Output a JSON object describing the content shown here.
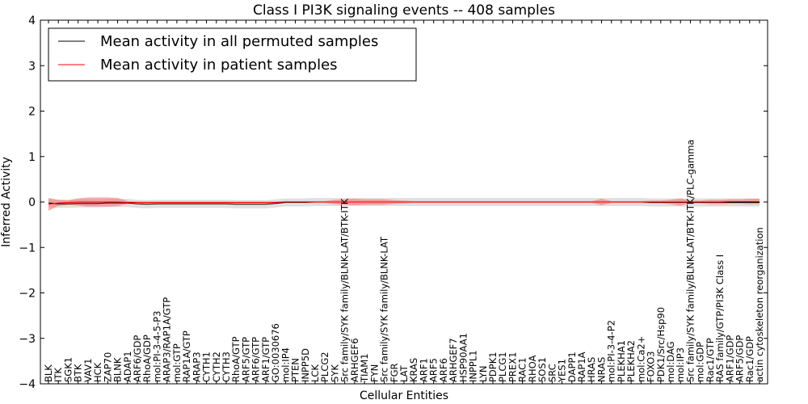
{
  "chart_data": {
    "type": "line",
    "title": "Class I PI3K signaling events -- 408 samples",
    "xlabel": "Cellular Entities",
    "ylabel": "Inferred Activity",
    "ylim": [
      -4,
      4
    ],
    "yticks": [
      4,
      3,
      2,
      1,
      0,
      -1,
      -2,
      -3,
      -4
    ],
    "ytick_labels": [
      "4",
      "3",
      "2",
      "1",
      "0",
      "−1",
      "−2",
      "−3",
      "−4"
    ],
    "grid": false,
    "legend_position": "top-left",
    "categories": [
      "BLK",
      "ITK",
      "SGK1",
      "BTK",
      "VAV1",
      "HCK",
      "ZAP70",
      "BLNK",
      "ADAP1",
      "ARF6/GDP",
      "RhoA/GDP",
      "mol:PI-3-4-5-P3",
      "ARAP3/RAP1A/GTP",
      "mol:GTP",
      "RAP1A/GTP",
      "ARAP3",
      "CYTH1",
      "CYTH2",
      "CYTH3",
      "RhoA/GTP",
      "ARF5/GTP",
      "ARF6/GTP",
      "ARF1/GTP",
      "GO:0030676",
      "mol:IP4",
      "PTEN",
      "INPP5D",
      "LCK",
      "PLCG2",
      "SYK",
      "Src family/SYK family/BLNK-LAT/BTK-ITK",
      "ARHGEF6",
      "TIAM1",
      "FYN",
      "Src family/SYK family/BLNK-LAT",
      "FGR",
      "LAT",
      "KRAS",
      "ARF1",
      "ARF5",
      "ARF6",
      "ARHGEF7",
      "HSP90AA1",
      "INPPL1",
      "LYN",
      "PDPK1",
      "PLCG1",
      "PREX1",
      "RAC1",
      "RHOA",
      "SOS1",
      "SRC",
      "YES1",
      "DAPP1",
      "RAP1A",
      "HRAS",
      "NRAS",
      "mol:PI-3-4-P2",
      "PLEKHA1",
      "PLEKHA2",
      "mol:Ca2+",
      "FOXO3",
      "PDK1/Src/Hsp90",
      "mol:DAG",
      "mol:IP3",
      "Src family/SYK family/BLNK-LAT/BTK-ITK/PLC-gamma",
      "mol:GDP",
      "Rac1/GTP",
      "RAS family/GTP/PI3K Class I",
      "ARF1/GDP",
      "ARF5/GDP",
      "Rac1/GDP",
      "actin cytoskeleton reorganization"
    ],
    "series": [
      {
        "name": "Mean activity in all permuted samples",
        "color": "#000000",
        "values": [
          -0.02,
          -0.04,
          -0.04,
          -0.03,
          -0.03,
          -0.03,
          -0.02,
          -0.02,
          -0.02,
          -0.04,
          -0.05,
          -0.04,
          -0.04,
          -0.04,
          -0.04,
          -0.04,
          -0.04,
          -0.04,
          -0.04,
          -0.05,
          -0.05,
          -0.05,
          -0.05,
          -0.03,
          -0.01,
          -0.01,
          -0.01,
          0.0,
          0.0,
          0.0,
          0.0,
          0.0,
          0.0,
          0.0,
          0.0,
          0.0,
          0.0,
          0.0,
          0.0,
          0.0,
          0.0,
          0.0,
          0.0,
          0.0,
          0.0,
          0.0,
          0.0,
          0.0,
          0.0,
          0.0,
          0.0,
          0.0,
          0.0,
          0.0,
          0.0,
          0.0,
          0.0,
          0.0,
          0.0,
          0.0,
          0.0,
          -0.01,
          -0.01,
          -0.01,
          -0.01,
          -0.01,
          -0.01,
          -0.01,
          -0.01,
          -0.01,
          -0.01,
          -0.01,
          -0.01
        ],
        "band": [
          0.09,
          0.09,
          0.09,
          0.09,
          0.09,
          0.09,
          0.09,
          0.09,
          0.09,
          0.09,
          0.09,
          0.09,
          0.09,
          0.09,
          0.09,
          0.09,
          0.09,
          0.09,
          0.09,
          0.09,
          0.09,
          0.09,
          0.09,
          0.09,
          0.09,
          0.09,
          0.09,
          0.09,
          0.09,
          0.09,
          0.09,
          0.09,
          0.09,
          0.09,
          0.09,
          0.09,
          0.09,
          0.09,
          0.09,
          0.09,
          0.09,
          0.09,
          0.09,
          0.09,
          0.09,
          0.09,
          0.09,
          0.09,
          0.09,
          0.09,
          0.09,
          0.09,
          0.09,
          0.09,
          0.09,
          0.09,
          0.09,
          0.09,
          0.09,
          0.09,
          0.09,
          0.09,
          0.09,
          0.09,
          0.09,
          0.09,
          0.09,
          0.09,
          0.09,
          0.09,
          0.09,
          0.09,
          0.09
        ]
      },
      {
        "name": "Mean activity in patient samples",
        "color": "#ff0000",
        "values": [
          -0.05,
          -0.02,
          -0.01,
          0.0,
          0.0,
          0.0,
          0.0,
          0.0,
          -0.01,
          -0.01,
          -0.01,
          -0.01,
          -0.01,
          -0.01,
          -0.01,
          -0.01,
          -0.01,
          -0.01,
          -0.01,
          -0.01,
          -0.01,
          -0.01,
          -0.01,
          -0.01,
          0.0,
          0.0,
          0.0,
          0.0,
          0.0,
          0.0,
          0.0,
          0.0,
          0.0,
          0.0,
          0.0,
          0.0,
          0.0,
          0.0,
          0.0,
          0.0,
          0.0,
          0.0,
          0.0,
          0.0,
          0.0,
          0.0,
          0.0,
          0.0,
          0.0,
          0.0,
          0.0,
          0.0,
          0.0,
          0.0,
          0.0,
          0.0,
          0.0,
          0.0,
          0.0,
          0.0,
          0.0,
          0.0,
          0.0,
          0.0,
          0.0,
          0.0,
          0.0,
          0.0,
          0.0,
          0.01,
          0.01,
          0.01,
          0.01
        ],
        "band": [
          0.14,
          0.07,
          0.05,
          0.08,
          0.1,
          0.1,
          0.1,
          0.09,
          0.03,
          0.02,
          0.02,
          0.02,
          0.02,
          0.02,
          0.02,
          0.02,
          0.02,
          0.02,
          0.02,
          0.02,
          0.02,
          0.02,
          0.02,
          0.02,
          0.02,
          0.02,
          0.02,
          0.02,
          0.02,
          0.05,
          0.06,
          0.07,
          0.06,
          0.06,
          0.06,
          0.04,
          0.03,
          0.02,
          0.02,
          0.02,
          0.02,
          0.02,
          0.02,
          0.02,
          0.02,
          0.02,
          0.02,
          0.02,
          0.02,
          0.02,
          0.02,
          0.02,
          0.02,
          0.02,
          0.02,
          0.02,
          0.07,
          0.02,
          0.02,
          0.02,
          0.02,
          0.03,
          0.03,
          0.05,
          0.08,
          0.03,
          0.03,
          0.05,
          0.05,
          0.05,
          0.05,
          0.06,
          0.06
        ]
      }
    ]
  }
}
